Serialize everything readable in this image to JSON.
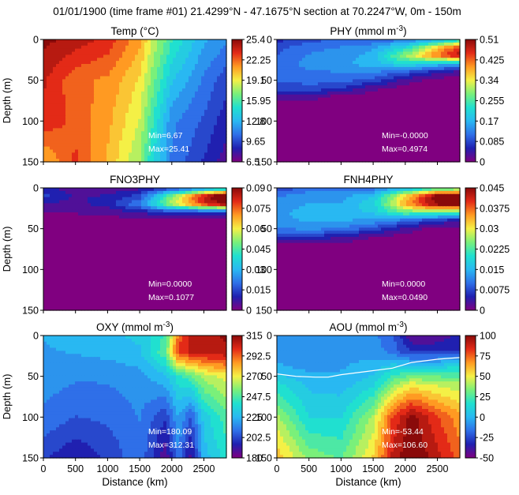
{
  "title": "01/01/1900 (time frame #01) 21.4299°N - 47.1675°N section at 70.2247°W, 0m - 150m",
  "x_ticks": [
    "0",
    "500",
    "1000",
    "1500",
    "2000",
    "2500"
  ],
  "y_ticks": [
    "0",
    "50",
    "100",
    "150"
  ],
  "xlabel": "Distance (km)",
  "ylabel": "Depth (m)",
  "colormap": [
    "#800080",
    "#2020b0",
    "#2f6fe8",
    "#29b8f2",
    "#20e0d0",
    "#7af07a",
    "#f4f046",
    "#ff9a22",
    "#e32a17",
    "#8a0a0a"
  ],
  "chart_data": [
    {
      "type": "heatmap",
      "name": "temp",
      "title_main": "Temp (°C)",
      "title_sup": "",
      "xlabel": "",
      "ylabel": "Depth (m)",
      "x_range_km": [
        0,
        2850
      ],
      "y_range_m": [
        0,
        150
      ],
      "colorbar_ticks": [
        "25.4",
        "22.25",
        "19.1",
        "15.95",
        "12.8",
        "9.65",
        "6.5"
      ],
      "colorbar_range": [
        6.5,
        25.4
      ],
      "min_label": "Min=6.67",
      "max_label": "Max=25.41",
      "distance_km": [
        0,
        500,
        1000,
        1500,
        1700,
        2000,
        2500,
        2850
      ],
      "depth_m": [
        0,
        50,
        100,
        150
      ],
      "grid": [
        [
          25.2,
          24.5,
          23.5,
          21.0,
          18.5,
          15.5,
          12.5,
          11.5
        ],
        [
          24.0,
          22.0,
          21.5,
          19.5,
          17.0,
          13.5,
          11.0,
          9.5
        ],
        [
          23.5,
          22.5,
          21.0,
          18.5,
          15.5,
          11.5,
          10.0,
          8.5
        ],
        [
          20.5,
          23.0,
          20.5,
          17.5,
          14.5,
          11.0,
          9.0,
          7.5
        ]
      ]
    },
    {
      "type": "heatmap",
      "name": "phy",
      "title_main": "PHY (mmol m",
      "title_sup": "-3",
      "title_end": ")",
      "xlabel": "",
      "ylabel": "",
      "x_range_km": [
        0,
        2850
      ],
      "y_range_m": [
        0,
        150
      ],
      "colorbar_ticks": [
        "0.51",
        "0.425",
        "0.34",
        "0.255",
        "0.17",
        "0.085",
        "0"
      ],
      "colorbar_range": [
        0,
        0.51
      ],
      "min_label": "Min=-0.0000",
      "max_label": "Max=0.4974",
      "distance_km": [
        0,
        500,
        1000,
        1500,
        2000,
        2500,
        2850
      ],
      "depth_m": [
        0,
        10,
        20,
        30,
        40,
        50,
        60,
        70,
        80,
        90,
        100,
        150
      ],
      "grid": [
        [
          0.06,
          0.09,
          0.1,
          0.1,
          0.12,
          0.16,
          0.2
        ],
        [
          0.09,
          0.12,
          0.13,
          0.15,
          0.22,
          0.36,
          0.46
        ],
        [
          0.1,
          0.13,
          0.14,
          0.17,
          0.3,
          0.42,
          0.49
        ],
        [
          0.11,
          0.14,
          0.15,
          0.17,
          0.22,
          0.18,
          0.15
        ],
        [
          0.11,
          0.12,
          0.13,
          0.13,
          0.1,
          0.05,
          0.03
        ],
        [
          0.1,
          0.11,
          0.11,
          0.09,
          0.03,
          0.0,
          0.0
        ],
        [
          0.08,
          0.09,
          0.07,
          0.02,
          0.0,
          0.0,
          0.0
        ],
        [
          0.04,
          0.03,
          0.0,
          0.0,
          0.0,
          0.0,
          0.0
        ],
        [
          0.0,
          0.0,
          0.0,
          0.0,
          0.0,
          0.0,
          0.0
        ],
        [
          0.0,
          0.0,
          0.0,
          0.0,
          0.0,
          0.0,
          0.0
        ],
        [
          0.0,
          0.0,
          0.0,
          0.0,
          0.0,
          0.0,
          0.0
        ],
        [
          0.0,
          0.0,
          0.0,
          0.0,
          0.0,
          0.0,
          0.0
        ]
      ]
    },
    {
      "type": "heatmap",
      "name": "fno3phy",
      "title_main": "FNO3PHY",
      "title_sup": "",
      "xlabel": "",
      "ylabel": "Depth (m)",
      "x_range_km": [
        0,
        2850
      ],
      "y_range_m": [
        0,
        150
      ],
      "colorbar_ticks": [
        "0.09",
        "0.075",
        "0.06",
        "0.045",
        "0.03",
        "0.015",
        "0"
      ],
      "colorbar_range": [
        0,
        0.09
      ],
      "min_label": "Min=0.0000",
      "max_label": "Max=0.1077",
      "distance_km": [
        0,
        500,
        1000,
        1500,
        2000,
        2500,
        2850
      ],
      "depth_m": [
        0,
        10,
        20,
        30,
        40,
        50,
        150
      ],
      "grid": [
        [
          0.01,
          0.004,
          0.004,
          0.006,
          0.012,
          0.02,
          0.03
        ],
        [
          0.014,
          0.007,
          0.008,
          0.015,
          0.05,
          0.085,
          0.1
        ],
        [
          0.006,
          0.006,
          0.01,
          0.022,
          0.055,
          0.08,
          0.09
        ],
        [
          0.002,
          0.003,
          0.004,
          0.008,
          0.012,
          0.01,
          0.01
        ],
        [
          0.0,
          0.0,
          0.0,
          0.001,
          0.001,
          0.0,
          0.0
        ],
        [
          0.0,
          0.0,
          0.0,
          0.0,
          0.0,
          0.0,
          0.0
        ],
        [
          0.0,
          0.0,
          0.0,
          0.0,
          0.0,
          0.0,
          0.0
        ]
      ]
    },
    {
      "type": "heatmap",
      "name": "fnh4phy",
      "title_main": "FNH4PHY",
      "title_sup": "",
      "xlabel": "",
      "ylabel": "",
      "x_range_km": [
        0,
        2850
      ],
      "y_range_m": [
        0,
        150
      ],
      "colorbar_ticks": [
        "0.045",
        "0.0375",
        "0.03",
        "0.0225",
        "0.015",
        "0.0075",
        "0"
      ],
      "colorbar_range": [
        0,
        0.045
      ],
      "min_label": "Min=0.0000",
      "max_label": "Max=0.0490",
      "distance_km": [
        0,
        500,
        1000,
        1500,
        2000,
        2500,
        2850
      ],
      "depth_m": [
        0,
        10,
        20,
        30,
        40,
        50,
        60,
        70,
        80,
        150
      ],
      "grid": [
        [
          0.006,
          0.01,
          0.01,
          0.01,
          0.014,
          0.02,
          0.022
        ],
        [
          0.011,
          0.013,
          0.013,
          0.016,
          0.032,
          0.046,
          0.047
        ],
        [
          0.012,
          0.014,
          0.014,
          0.018,
          0.034,
          0.045,
          0.046
        ],
        [
          0.013,
          0.015,
          0.015,
          0.017,
          0.024,
          0.024,
          0.022
        ],
        [
          0.013,
          0.014,
          0.014,
          0.013,
          0.01,
          0.006,
          0.004
        ],
        [
          0.011,
          0.012,
          0.011,
          0.008,
          0.003,
          0.0,
          0.0
        ],
        [
          0.006,
          0.006,
          0.004,
          0.001,
          0.0,
          0.0,
          0.0
        ],
        [
          0.0,
          0.0,
          0.0,
          0.0,
          0.0,
          0.0,
          0.0
        ],
        [
          0.0,
          0.0,
          0.0,
          0.0,
          0.0,
          0.0,
          0.0
        ],
        [
          0.0,
          0.0,
          0.0,
          0.0,
          0.0,
          0.0,
          0.0
        ]
      ]
    },
    {
      "type": "heatmap",
      "name": "oxy",
      "title_main": "OXY (mmol m",
      "title_sup": "-3",
      "title_end": ")",
      "xlabel": "Distance (km)",
      "ylabel": "Depth (m)",
      "x_range_km": [
        0,
        2850
      ],
      "y_range_m": [
        0,
        150
      ],
      "colorbar_ticks": [
        "315",
        "292.5",
        "270",
        "247.5",
        "225",
        "202.5",
        "180"
      ],
      "colorbar_range": [
        180,
        315
      ],
      "min_label": "Min=180.09",
      "max_label": "Max=312.31",
      "distance_km": [
        0,
        500,
        1000,
        1500,
        1900,
        2100,
        2300,
        2500,
        2850
      ],
      "depth_m": [
        0,
        20,
        50,
        100,
        150
      ],
      "grid": [
        [
          222,
          226,
          228,
          230,
          245,
          290,
          305,
          310,
          312
        ],
        [
          220,
          222,
          224,
          228,
          250,
          300,
          306,
          308,
          310
        ],
        [
          218,
          215,
          215,
          218,
          228,
          240,
          250,
          262,
          270
        ],
        [
          212,
          206,
          208,
          214,
          200,
          222,
          205,
          232,
          248
        ],
        [
          200,
          192,
          200,
          212,
          185,
          212,
          188,
          225,
          240
        ]
      ]
    },
    {
      "type": "heatmap",
      "name": "aou",
      "title_main": "AOU (mmol m",
      "title_sup": "-3",
      "title_end": ")",
      "xlabel": "Distance (km)",
      "ylabel": "",
      "x_range_km": [
        0,
        2850
      ],
      "y_range_m": [
        0,
        150
      ],
      "colorbar_ticks": [
        "100",
        "75",
        "50",
        "25",
        "0",
        "-25",
        "-50"
      ],
      "colorbar_range": [
        -50,
        100
      ],
      "min_label": "Min=-53.44",
      "max_label": "Max=106.60",
      "distance_km": [
        0,
        500,
        1000,
        1500,
        1800,
        2100,
        2400,
        2850
      ],
      "depth_m": [
        0,
        20,
        40,
        60,
        100,
        150
      ],
      "grid": [
        [
          -8,
          -5,
          -5,
          -10,
          -20,
          -45,
          -45,
          -35
        ],
        [
          -10,
          -8,
          -6,
          -8,
          -15,
          -30,
          -30,
          -28
        ],
        [
          -2,
          -6,
          -5,
          0,
          10,
          12,
          12,
          15
        ],
        [
          15,
          2,
          0,
          10,
          35,
          50,
          45,
          40
        ],
        [
          40,
          12,
          12,
          40,
          80,
          100,
          85,
          65
        ],
        [
          60,
          35,
          28,
          55,
          90,
          105,
          95,
          75
        ]
      ],
      "zero_contour": {
        "distance_km": [
          0,
          300,
          600,
          800,
          1000,
          1400,
          1800,
          2100,
          2500,
          2850
        ],
        "depth_m": [
          47,
          50,
          51,
          51,
          48,
          44,
          40,
          33,
          29,
          27
        ]
      }
    }
  ]
}
